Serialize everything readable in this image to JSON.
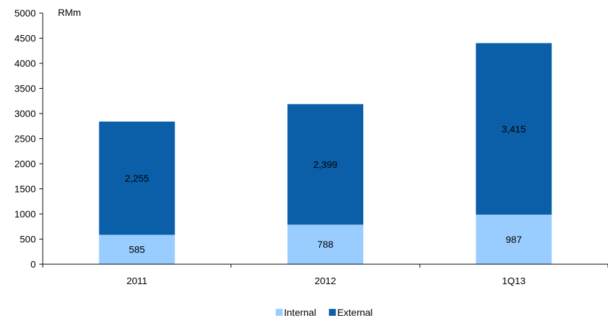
{
  "chart_data": {
    "type": "bar",
    "stacked": true,
    "categories": [
      "2011",
      "2012",
      "1Q13"
    ],
    "series": [
      {
        "name": "Internal",
        "values": [
          585,
          788,
          987
        ],
        "labels": [
          "585",
          "788",
          "987"
        ],
        "color": "#99ccff"
      },
      {
        "name": "External",
        "values": [
          2255,
          2399,
          3415
        ],
        "labels": [
          "2,255",
          "2,399",
          "3,415"
        ],
        "color": "#0a5fa8"
      }
    ],
    "unit": "RMm",
    "ylim": [
      0,
      5000
    ],
    "yticks": [
      0,
      500,
      1000,
      1500,
      2000,
      2500,
      3000,
      3500,
      4000,
      4500,
      5000
    ],
    "grid": false,
    "legend_position": "bottom-center"
  }
}
